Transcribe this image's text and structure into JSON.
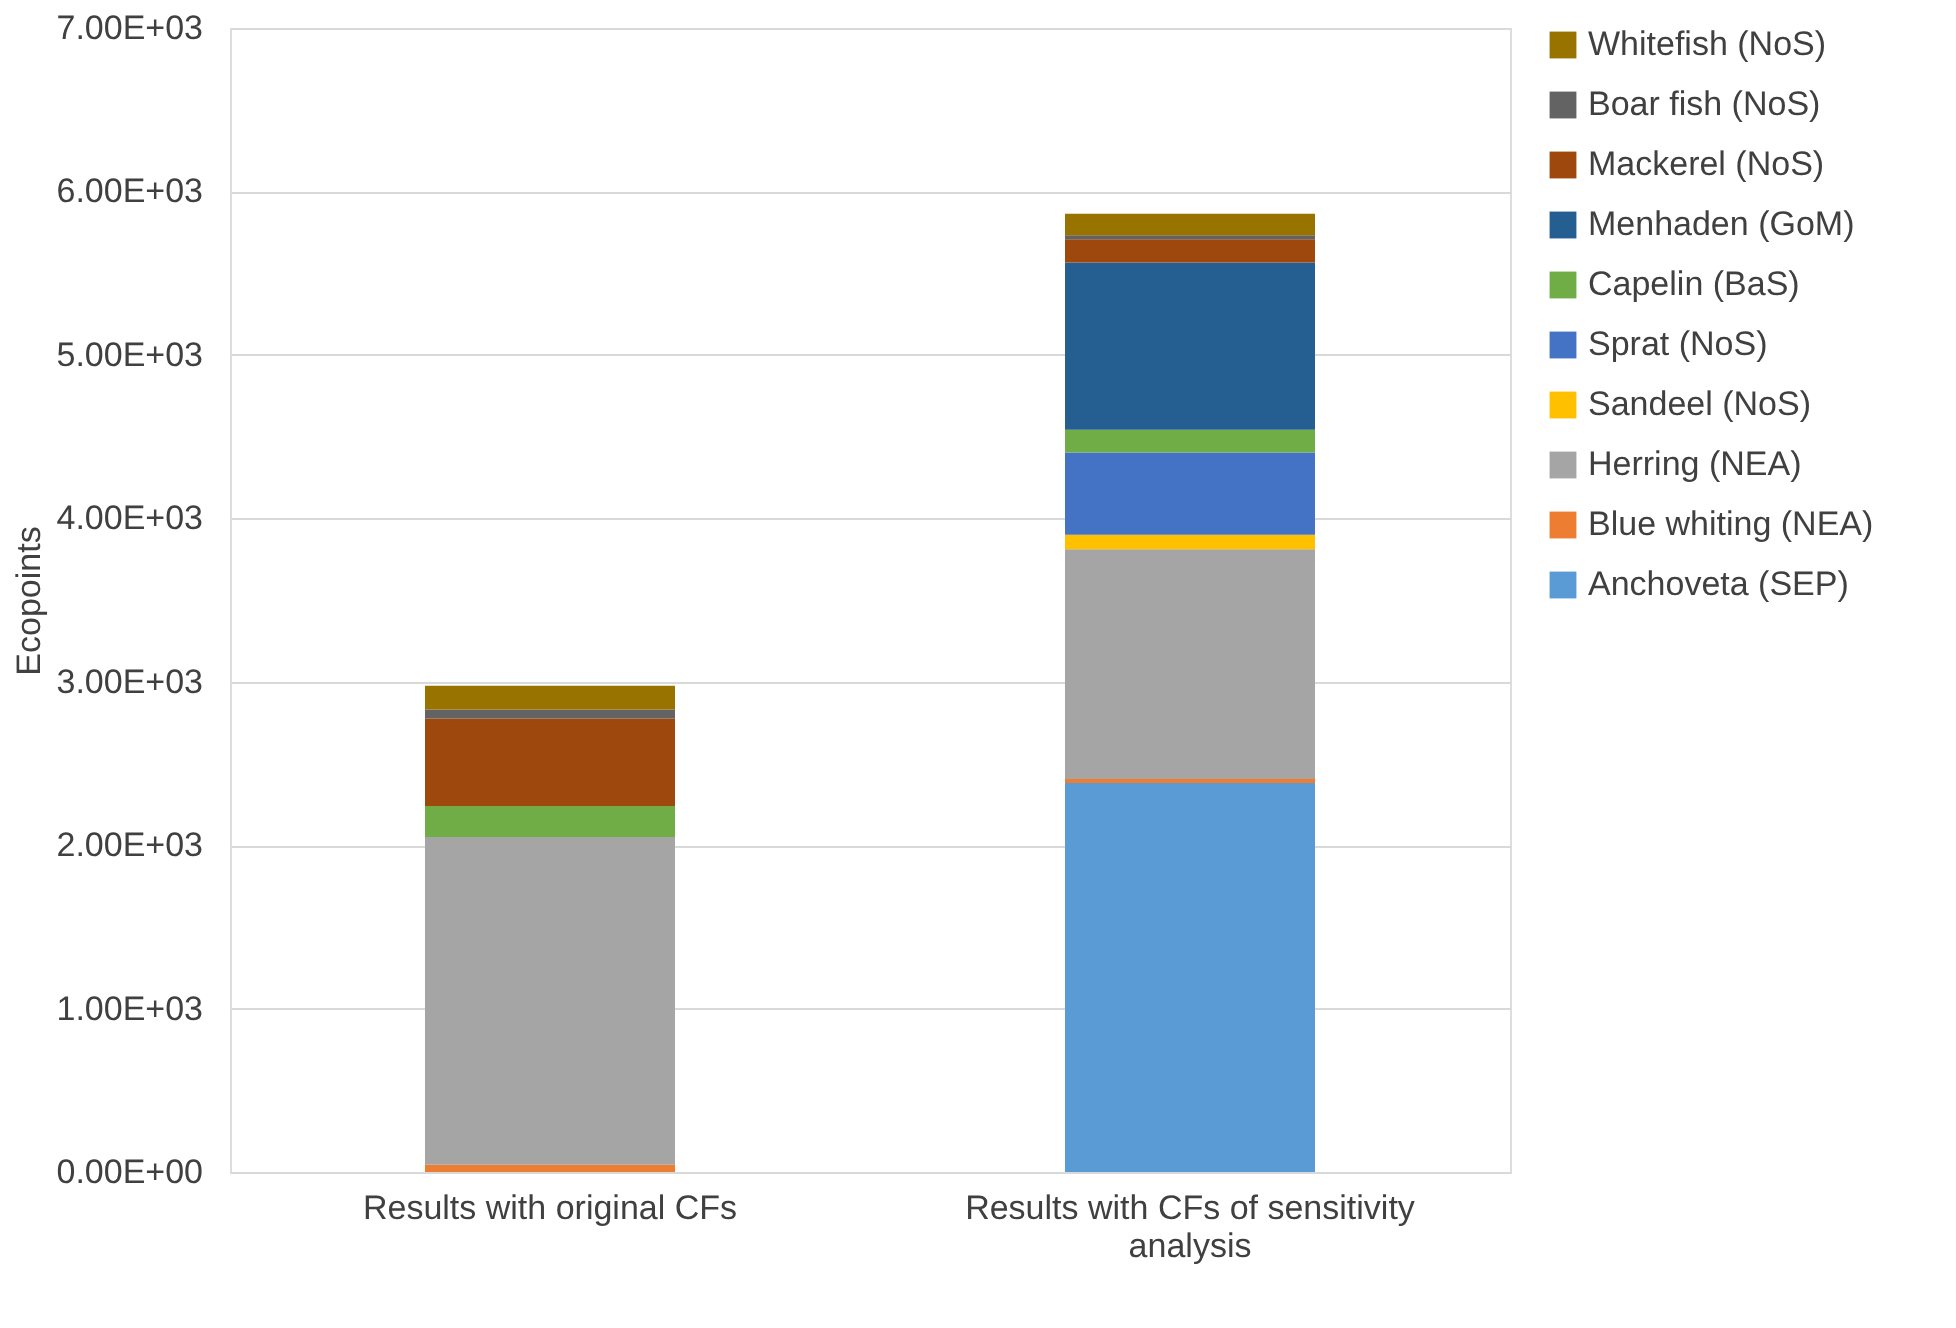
{
  "chart_data": {
    "type": "bar",
    "stacked": true,
    "ylabel": "Ecopoints",
    "categories": [
      "Results with original CFs",
      "Results with CFs of sensitivity analysis"
    ],
    "series": [
      {
        "name": "Anchoveta (SEP)",
        "color": "#5b9bd5",
        "values": [
          null,
          2380
        ]
      },
      {
        "name": "Blue whiting (NEA)",
        "color": "#ed7d31",
        "values": [
          45,
          25
        ]
      },
      {
        "name": "Herring (NEA)",
        "color": "#a5a5a5",
        "values": [
          2005,
          1405
        ]
      },
      {
        "name": "Sandeel (NoS)",
        "color": "#ffc000",
        "values": [
          null,
          90
        ]
      },
      {
        "name": "Sprat (NoS)",
        "color": "#4472c4",
        "values": [
          null,
          503
        ]
      },
      {
        "name": "Capelin (BaS)",
        "color": "#70ad47",
        "values": [
          190,
          139
        ]
      },
      {
        "name": "Menhaden (GoM)",
        "color": "#255e91",
        "values": [
          null,
          1023
        ]
      },
      {
        "name": "Mackerel (NoS)",
        "color": "#9e480e",
        "values": [
          535,
          142
        ]
      },
      {
        "name": "Boar fish (NoS)",
        "color": "#636363",
        "values": [
          55,
          25
        ]
      },
      {
        "name": "Whitefish (NoS)",
        "color": "#997300",
        "values": [
          145,
          131
        ]
      }
    ],
    "ylim": [
      0,
      7000
    ],
    "yticks": [
      {
        "value": 0,
        "label": "0.00E+00"
      },
      {
        "value": 1000,
        "label": "1.00E+03"
      },
      {
        "value": 2000,
        "label": "2.00E+03"
      },
      {
        "value": 3000,
        "label": "3.00E+03"
      },
      {
        "value": 4000,
        "label": "4.00E+03"
      },
      {
        "value": 5000,
        "label": "5.00E+03"
      },
      {
        "value": 6000,
        "label": "6.00E+03"
      },
      {
        "value": 7000,
        "label": "7.00E+03"
      }
    ],
    "grid": "y",
    "legend": "right"
  }
}
